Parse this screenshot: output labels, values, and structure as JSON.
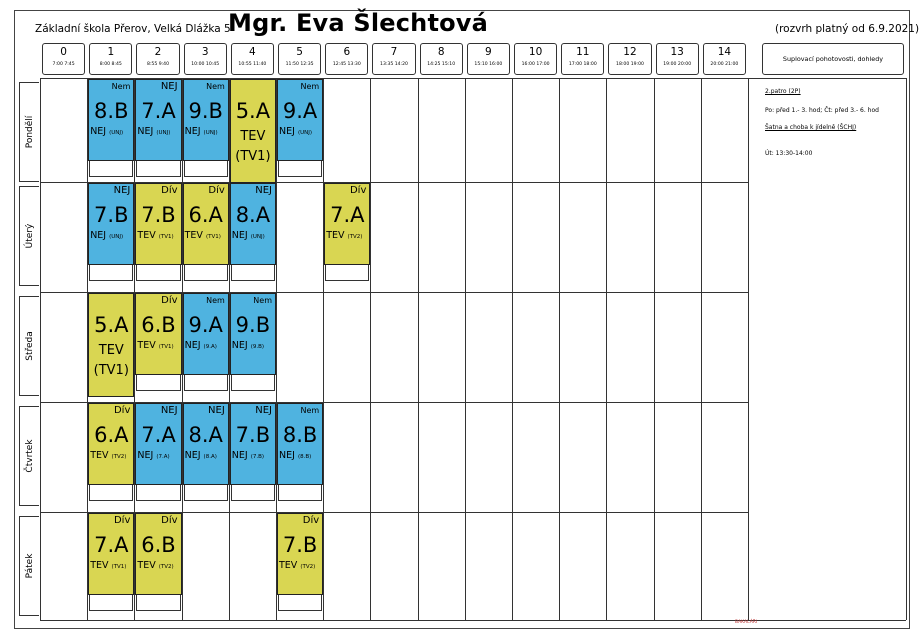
{
  "header": {
    "school": "Základní škola Přerov, Velká Dlážka 5",
    "teacher": "Mgr. Eva Šlechtová",
    "valid_from": "(rozvrh platný od 6.9.2021)"
  },
  "periods": [
    {
      "num": "0",
      "time": "7:00  7:45"
    },
    {
      "num": "1",
      "time": "8:00  8:45"
    },
    {
      "num": "2",
      "time": "8:55  9:40"
    },
    {
      "num": "3",
      "time": "10:00 10:45"
    },
    {
      "num": "4",
      "time": "10:55 11:40"
    },
    {
      "num": "5",
      "time": "11:50 12:35"
    },
    {
      "num": "6",
      "time": "12:45 13:30"
    },
    {
      "num": "7",
      "time": "13:35 14:20"
    },
    {
      "num": "8",
      "time": "14:25 15:10"
    },
    {
      "num": "9",
      "time": "15:10 16:00"
    },
    {
      "num": "10",
      "time": "16:00 17:00"
    },
    {
      "num": "11",
      "time": "17:00 18:00"
    },
    {
      "num": "12",
      "time": "18:00 19:00"
    },
    {
      "num": "13",
      "time": "19:00 20:00"
    },
    {
      "num": "14",
      "time": "20:00 21:00"
    }
  ],
  "supervision": {
    "heading": "Suplovací pohotovosti, dohledy",
    "lines": [
      {
        "text": "2.patro (2P)",
        "underline": true
      },
      {
        "text": "Po: před 1.- 3. hod; Čt: před 3.- 6. hod",
        "underline": false
      },
      {
        "text": "Šatna a choba k jídelně (ŠCHJ)",
        "underline": true
      },
      {
        "text": "Út: 13:30-14:00",
        "underline": false
      }
    ]
  },
  "days": [
    "Pondělí",
    "Úterý",
    "Středa",
    "Čtvrtek",
    "Pátek"
  ],
  "lessons": [
    {
      "day": 0,
      "period": 1,
      "kind": "nej",
      "top": "Nem",
      "cls": "8.B",
      "subject": "NEJ",
      "room": "(UNJ)"
    },
    {
      "day": 0,
      "period": 2,
      "kind": "nej",
      "top": "NEJ",
      "cls": "7.A",
      "subject": "NEJ",
      "room": "(UNJ)"
    },
    {
      "day": 0,
      "period": 3,
      "kind": "nej",
      "top": "Nem",
      "cls": "9.B",
      "subject": "NEJ",
      "room": "(UNJ)"
    },
    {
      "day": 0,
      "period": 4,
      "kind": "tev",
      "top": "",
      "cls": "5.A",
      "subject": "TEV",
      "room": "(TV1)",
      "tall": true
    },
    {
      "day": 0,
      "period": 5,
      "kind": "nej",
      "top": "Nem",
      "cls": "9.A",
      "subject": "NEJ",
      "room": "(UNJ)"
    },
    {
      "day": 1,
      "period": 1,
      "kind": "nej",
      "top": "NEJ",
      "cls": "7.B",
      "subject": "NEJ",
      "room": "(UNJ)"
    },
    {
      "day": 1,
      "period": 2,
      "kind": "tev",
      "top": "Dív",
      "cls": "7.B",
      "subject": "TEV",
      "room": "(TV1)"
    },
    {
      "day": 1,
      "period": 3,
      "kind": "tev",
      "top": "Dív",
      "cls": "6.A",
      "subject": "TEV",
      "room": "(TV1)"
    },
    {
      "day": 1,
      "period": 4,
      "kind": "nej",
      "top": "NEJ",
      "cls": "8.A",
      "subject": "NEJ",
      "room": "(UNJ)"
    },
    {
      "day": 1,
      "period": 6,
      "kind": "tev",
      "top": "Dív",
      "cls": "7.A",
      "subject": "TEV",
      "room": "(TV2)"
    },
    {
      "day": 2,
      "period": 1,
      "kind": "tev",
      "top": "",
      "cls": "5.A",
      "subject": "TEV",
      "room": "(TV1)",
      "tall": true
    },
    {
      "day": 2,
      "period": 2,
      "kind": "tev",
      "top": "Dív",
      "cls": "6.B",
      "subject": "TEV",
      "room": "(TV1)"
    },
    {
      "day": 2,
      "period": 3,
      "kind": "nej",
      "top": "Nem",
      "cls": "9.A",
      "subject": "NEJ",
      "room": "(9.A)"
    },
    {
      "day": 2,
      "period": 4,
      "kind": "nej",
      "top": "Nem",
      "cls": "9.B",
      "subject": "NEJ",
      "room": "(9.B)"
    },
    {
      "day": 3,
      "period": 1,
      "kind": "tev",
      "top": "Dív",
      "cls": "6.A",
      "subject": "TEV",
      "room": "(TV2)"
    },
    {
      "day": 3,
      "period": 2,
      "kind": "nej",
      "top": "NEJ",
      "cls": "7.A",
      "subject": "NEJ",
      "room": "(7.A)"
    },
    {
      "day": 3,
      "period": 3,
      "kind": "nej",
      "top": "NEJ",
      "cls": "8.A",
      "subject": "NEJ",
      "room": "(8.A)"
    },
    {
      "day": 3,
      "period": 4,
      "kind": "nej",
      "top": "NEJ",
      "cls": "7.B",
      "subject": "NEJ",
      "room": "(7.B)"
    },
    {
      "day": 3,
      "period": 5,
      "kind": "nej",
      "top": "Nem",
      "cls": "8.B",
      "subject": "NEJ",
      "room": "(8.B)"
    },
    {
      "day": 4,
      "period": 1,
      "kind": "tev",
      "top": "Dív",
      "cls": "7.A",
      "subject": "TEV",
      "room": "(TV1)"
    },
    {
      "day": 4,
      "period": 2,
      "kind": "tev",
      "top": "Dív",
      "cls": "6.B",
      "subject": "TEV",
      "room": "(TV2)"
    },
    {
      "day": 4,
      "period": 5,
      "kind": "tev",
      "top": "Dív",
      "cls": "7.B",
      "subject": "TEV",
      "room": "(TV2)"
    }
  ],
  "colors": {
    "nej": "#4fb3e0",
    "tev": "#d9d652"
  },
  "footer_logo": "BAKALÁŘI"
}
